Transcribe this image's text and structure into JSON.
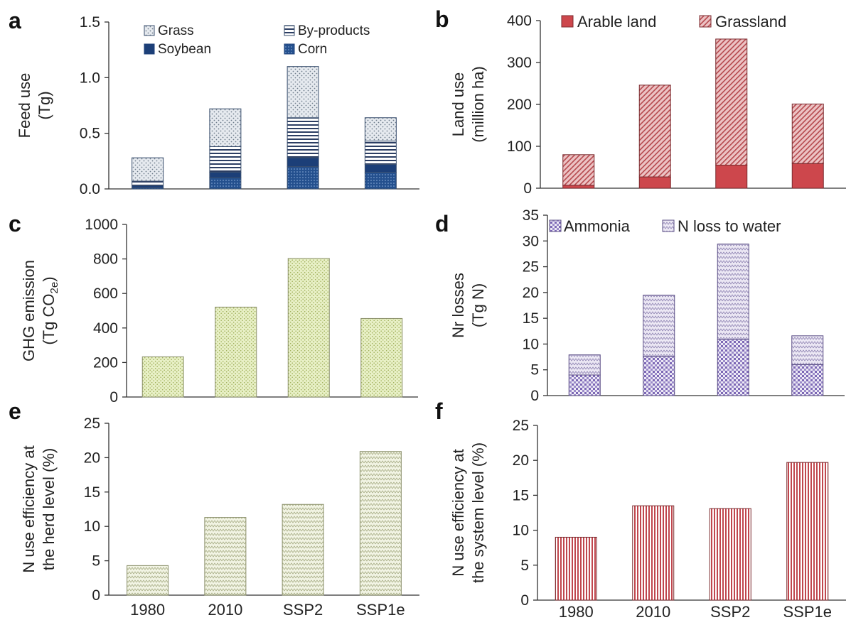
{
  "categories": [
    "1980",
    "2010",
    "SSP2",
    "SSP1e"
  ],
  "chart_data": [
    {
      "panel": "a",
      "type": "bar",
      "stacked": true,
      "ylabel_line1": "Feed use",
      "ylabel_line2": "(Tg)",
      "ylim": [
        0,
        1.5
      ],
      "yticks": [
        "0.0",
        "0.5",
        "1.0",
        "1.5"
      ],
      "categories": [
        "1980",
        "2010",
        "SSP2",
        "SSP1e"
      ],
      "series": [
        {
          "name": "Corn",
          "values": [
            0.01,
            0.1,
            0.2,
            0.15
          ]
        },
        {
          "name": "Soybean",
          "values": [
            0.02,
            0.05,
            0.08,
            0.07
          ]
        },
        {
          "name": "By-products",
          "values": [
            0.04,
            0.23,
            0.36,
            0.21
          ]
        },
        {
          "name": "Grass",
          "values": [
            0.21,
            0.34,
            0.46,
            0.21
          ]
        }
      ],
      "legend": [
        "Grass",
        "By-products",
        "Soybean",
        "Corn"
      ]
    },
    {
      "panel": "b",
      "type": "bar",
      "stacked": true,
      "ylabel_line1": "Land use",
      "ylabel_line2": "(million ha)",
      "ylim": [
        0,
        400
      ],
      "yticks": [
        "0",
        "100",
        "200",
        "300",
        "400"
      ],
      "categories": [
        "1980",
        "2010",
        "SSP2",
        "SSP1e"
      ],
      "series": [
        {
          "name": "Arable land",
          "values": [
            7,
            27,
            55,
            59
          ]
        },
        {
          "name": "Grassland",
          "values": [
            73,
            219,
            301,
            142
          ]
        }
      ],
      "legend": [
        "Arable land",
        "Grassland"
      ]
    },
    {
      "panel": "c",
      "type": "bar",
      "stacked": false,
      "ylabel_line1": "GHG emission",
      "ylabel_line2": "(Tg CO",
      "ylabel_sub": "2e",
      "ylabel_close": ")",
      "ylim": [
        0,
        1000
      ],
      "yticks": [
        "0",
        "200",
        "400",
        "600",
        "800",
        "1000"
      ],
      "categories": [
        "1980",
        "2010",
        "SSP2",
        "SSP1e"
      ],
      "series": [
        {
          "values": [
            233,
            521,
            803,
            455
          ]
        }
      ]
    },
    {
      "panel": "d",
      "type": "bar",
      "stacked": true,
      "ylabel_line1": "Nr losses",
      "ylabel_line2": "(Tg N)",
      "ylim": [
        0,
        35
      ],
      "yticks": [
        "0",
        "5",
        "10",
        "15",
        "20",
        "25",
        "30",
        "35"
      ],
      "categories": [
        "1980",
        "2010",
        "SSP2",
        "SSP1e"
      ],
      "series": [
        {
          "name": "Ammonia",
          "values": [
            4.0,
            7.6,
            10.9,
            6.0
          ]
        },
        {
          "name": "N loss to water",
          "values": [
            3.9,
            11.9,
            18.5,
            5.6
          ]
        }
      ],
      "legend": [
        "Ammonia",
        "N loss to water"
      ]
    },
    {
      "panel": "e",
      "type": "bar",
      "stacked": false,
      "ylabel_line1": "N use efficiency at",
      "ylabel_line2": "the herd level (%)",
      "ylim": [
        0,
        25
      ],
      "yticks": [
        "0",
        "5",
        "10",
        "15",
        "20",
        "25"
      ],
      "categories": [
        "1980",
        "2010",
        "SSP2",
        "SSP1e"
      ],
      "series": [
        {
          "values": [
            4.3,
            11.3,
            13.2,
            20.9
          ]
        }
      ]
    },
    {
      "panel": "f",
      "type": "bar",
      "stacked": false,
      "ylabel_line1": "N use efficiency at",
      "ylabel_line2": "the system level (%)",
      "ylim": [
        0,
        25
      ],
      "yticks": [
        "0",
        "5",
        "10",
        "15",
        "20",
        "25"
      ],
      "categories": [
        "1980",
        "2010",
        "SSP2",
        "SSP1e"
      ],
      "series": [
        {
          "values": [
            9.0,
            13.5,
            13.1,
            19.7
          ]
        }
      ]
    }
  ],
  "colors": {
    "grass": "#e3e8ee",
    "byproducts": "#ffffff",
    "soybean": "#1f4e8c",
    "corn": "#3b66a8",
    "arable": "#cf4a4e",
    "grassland": "#e8b7b9",
    "ghg": "#e6efc4",
    "ammonia": "#a79ad0",
    "nwater": "#e8e3f2",
    "nue_herd": "#eef2dd",
    "nue_system": "#c2474f"
  }
}
